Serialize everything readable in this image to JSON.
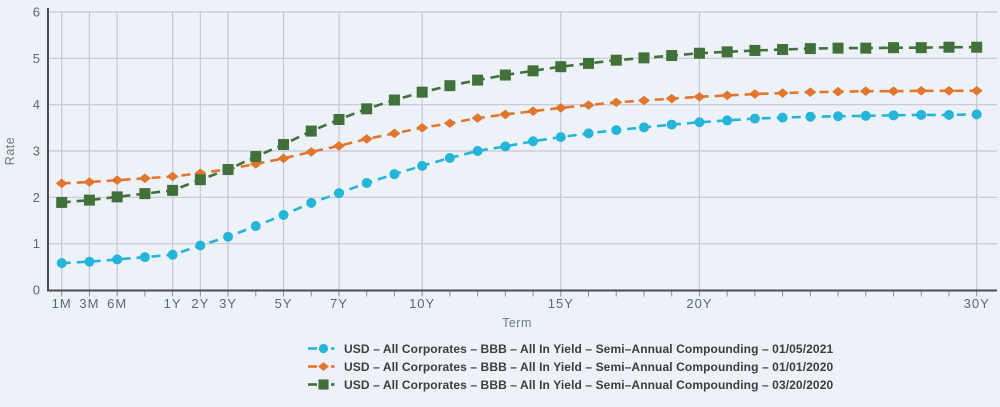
{
  "colors": {
    "background": "#edf2f9",
    "gridline": "#c5c9cd",
    "axis": "#4a4c4e",
    "tick_mark": "#85909a",
    "tick_text": "#5c6873",
    "axis_title_text": "#6e7a85",
    "legend_text": "#3d3d3d"
  },
  "chart_data": {
    "type": "line",
    "title": "",
    "xlabel": "Term",
    "ylabel": "Rate",
    "ylim": [
      0,
      6
    ],
    "y_ticks": [
      0,
      1,
      2,
      3,
      4,
      5,
      6
    ],
    "grid": true,
    "legend_position": "bottom",
    "line_style": "dashed",
    "categories": [
      "1M",
      "3M",
      "6M",
      "9M",
      "1Y",
      "2Y",
      "3Y",
      "4Y",
      "5Y",
      "6Y",
      "7Y",
      "8Y",
      "9Y",
      "10Y",
      "11Y",
      "12Y",
      "13Y",
      "14Y",
      "15Y",
      "16Y",
      "17Y",
      "18Y",
      "19Y",
      "20Y",
      "21Y",
      "22Y",
      "23Y",
      "24Y",
      "25Y",
      "26Y",
      "27Y",
      "28Y",
      "29Y",
      "30Y"
    ],
    "labeled_ticks": [
      "1M",
      "3M",
      "6M",
      "1Y",
      "2Y",
      "3Y",
      "5Y",
      "7Y",
      "10Y",
      "15Y",
      "20Y",
      "30Y"
    ],
    "series": [
      {
        "name": "USD – All Corporates – BBB – All In Yield – Semi–Annual Compounding – 01/05/2021",
        "color": "#25b5d8",
        "marker": "circle",
        "values": [
          0.58,
          0.61,
          0.66,
          0.71,
          0.76,
          0.96,
          1.15,
          1.38,
          1.62,
          1.88,
          2.09,
          2.31,
          2.5,
          2.68,
          2.85,
          3.0,
          3.1,
          3.21,
          3.3,
          3.38,
          3.45,
          3.51,
          3.57,
          3.62,
          3.66,
          3.7,
          3.72,
          3.74,
          3.75,
          3.76,
          3.77,
          3.78,
          3.78,
          3.79
        ]
      },
      {
        "name": "USD – All Corporates – BBB – All In Yield – Semi–Annual Compounding – 01/01/2020",
        "color": "#e1762f",
        "marker": "diamond",
        "values": [
          2.3,
          2.33,
          2.37,
          2.41,
          2.45,
          2.52,
          2.61,
          2.72,
          2.84,
          2.98,
          3.11,
          3.26,
          3.38,
          3.5,
          3.6,
          3.71,
          3.79,
          3.86,
          3.93,
          3.99,
          4.05,
          4.09,
          4.13,
          4.17,
          4.2,
          4.23,
          4.25,
          4.27,
          4.28,
          4.29,
          4.29,
          4.3,
          4.3,
          4.3
        ]
      },
      {
        "name": "USD – All Corporates – BBB – All In Yield – Semi–Annual Compounding – 03/20/2020",
        "color": "#42703a",
        "marker": "square",
        "values": [
          1.89,
          1.94,
          2.01,
          2.08,
          2.15,
          2.38,
          2.6,
          2.88,
          3.14,
          3.43,
          3.68,
          3.91,
          4.1,
          4.27,
          4.41,
          4.53,
          4.64,
          4.73,
          4.82,
          4.89,
          4.96,
          5.01,
          5.06,
          5.11,
          5.14,
          5.17,
          5.19,
          5.21,
          5.22,
          5.22,
          5.23,
          5.23,
          5.24,
          5.24
        ]
      }
    ]
  }
}
